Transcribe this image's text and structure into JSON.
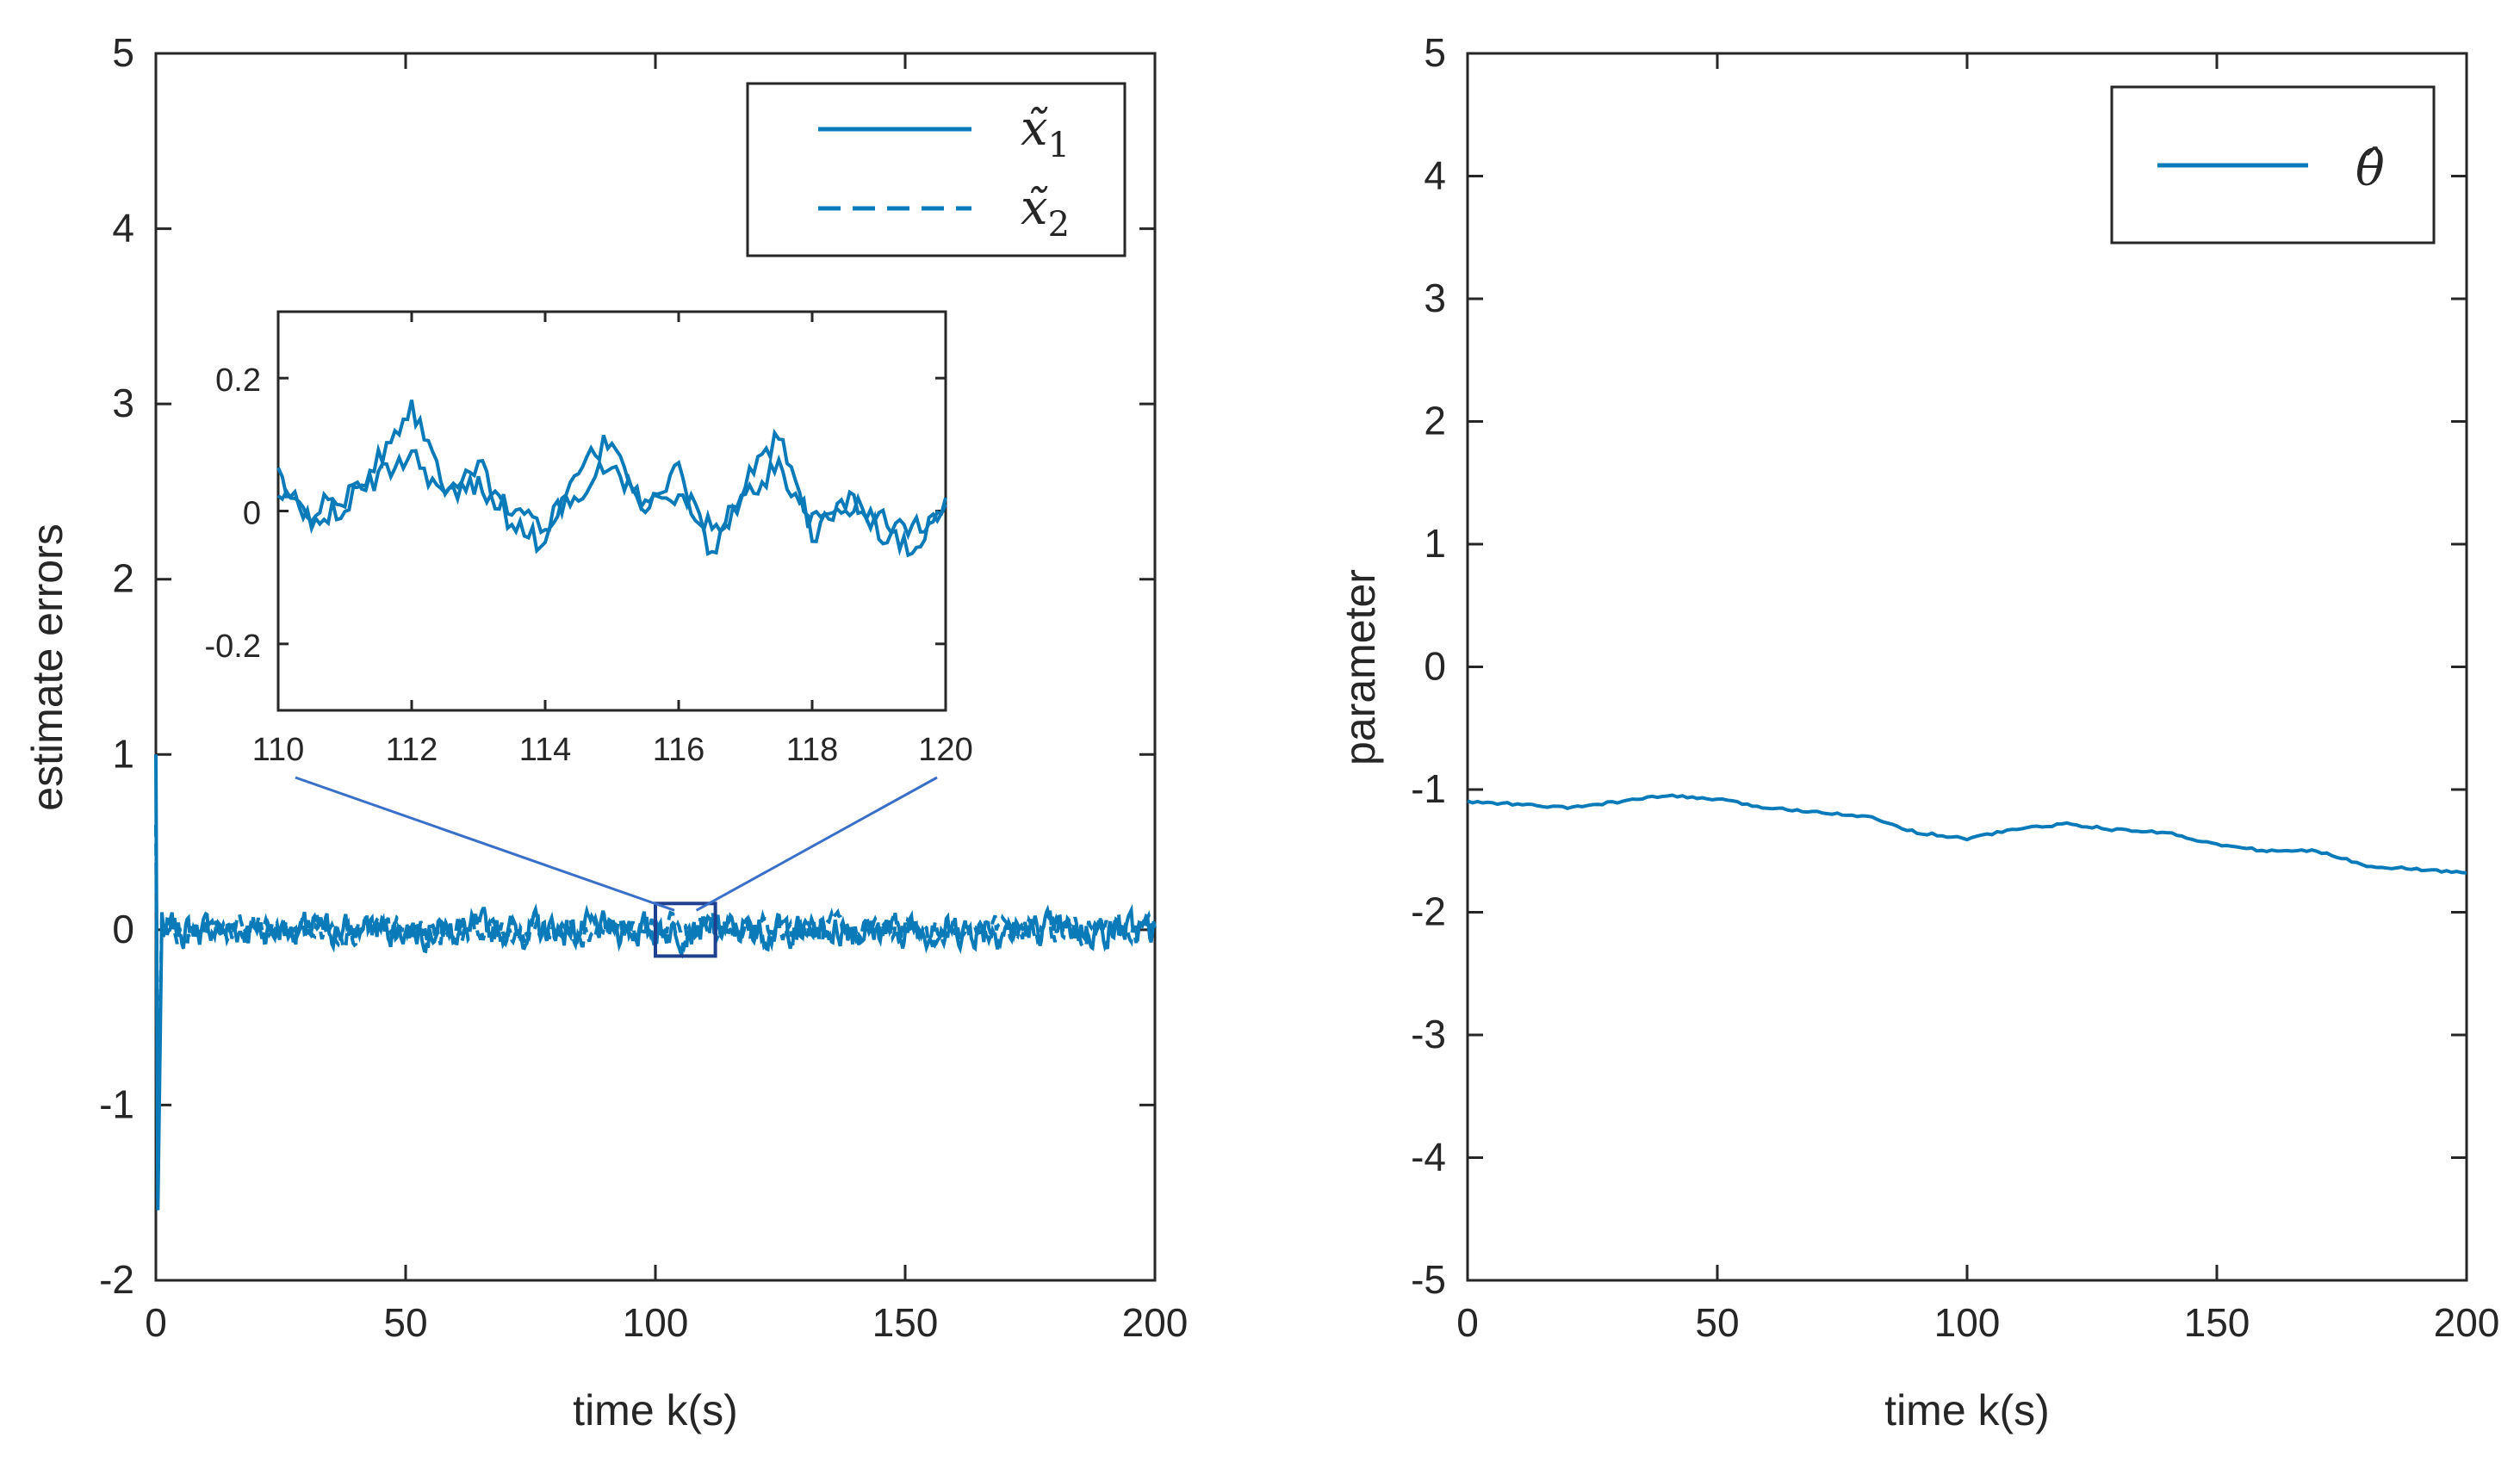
{
  "colors": {
    "line": "#0a7ab8",
    "axis": "#262626",
    "zoom": "#3a6fc8",
    "box": "#1f3f8f"
  },
  "chart_data": [
    {
      "type": "line",
      "xlabel": "time k(s)",
      "ylabel": "estimate errors",
      "xlim": [
        0,
        200
      ],
      "ylim": [
        -2,
        5
      ],
      "xticks": [
        0,
        50,
        100,
        150,
        200
      ],
      "yticks": [
        -2,
        -1,
        0,
        1,
        2,
        3,
        4,
        5
      ],
      "legend_position": "top-right",
      "series": [
        {
          "name": "x̃",
          "sub": "1",
          "style": "solid",
          "amplitude": 0.06,
          "initial": [
            1.0,
            -1.6
          ]
        },
        {
          "name": "x̃",
          "sub": "2",
          "style": "dashed",
          "amplitude": 0.05,
          "initial": [
            0.6,
            -1.2
          ]
        }
      ],
      "inset": {
        "xlim": [
          110,
          120
        ],
        "ylim": [
          -0.3,
          0.3
        ],
        "xticks": [
          110,
          112,
          114,
          116,
          118,
          120
        ],
        "yticks": [
          -0.2,
          0,
          0.2
        ],
        "zoom_box": {
          "x": [
            100,
            112
          ],
          "y": [
            -0.15,
            0.15
          ]
        },
        "series": [
          {
            "name": "x̃1",
            "x": [
              110,
              110.5,
              111,
              111.5,
              112,
              112.5,
              113,
              113.5,
              114,
              114.5,
              115,
              115.5,
              116,
              116.5,
              117,
              117.5,
              118,
              118.5,
              119,
              119.5,
              120
            ],
            "y": [
              0.05,
              -0.02,
              0.01,
              0.08,
              0.16,
              0.04,
              0.07,
              -0.02,
              -0.05,
              0.06,
              0.11,
              0.0,
              0.06,
              -0.07,
              0.04,
              0.11,
              -0.04,
              0.02,
              -0.03,
              -0.06,
              0.02
            ]
          },
          {
            "name": "x̃2",
            "x": [
              110,
              110.5,
              111,
              111.5,
              112,
              112.5,
              113,
              113.5,
              114,
              114.5,
              115,
              115.5,
              116,
              116.5,
              117,
              117.5,
              118,
              118.5,
              119,
              119.5,
              120
            ],
            "y": [
              0.02,
              0.0,
              0.02,
              0.05,
              0.09,
              0.02,
              0.04,
              0.0,
              -0.02,
              0.03,
              0.07,
              0.01,
              0.03,
              -0.03,
              0.02,
              0.07,
              -0.02,
              0.01,
              -0.01,
              -0.03,
              0.01
            ]
          }
        ]
      }
    },
    {
      "type": "line",
      "xlabel": "time k(s)",
      "ylabel": "parameter",
      "xlim": [
        0,
        200
      ],
      "ylim": [
        -5,
        5
      ],
      "xticks": [
        0,
        50,
        100,
        150,
        200
      ],
      "yticks": [
        -5,
        -4,
        -3,
        -2,
        -1,
        0,
        1,
        2,
        3,
        4,
        5
      ],
      "legend_position": "top-right",
      "series": [
        {
          "name": "θ̂",
          "x": [
            0,
            10,
            20,
            30,
            40,
            50,
            60,
            70,
            80,
            90,
            100,
            110,
            120,
            130,
            140,
            150,
            160,
            170,
            180,
            190,
            200
          ],
          "y": [
            -1.1,
            -1.12,
            -1.15,
            -1.1,
            -1.05,
            -1.08,
            -1.15,
            -1.18,
            -1.22,
            -1.35,
            -1.4,
            -1.32,
            -1.28,
            -1.33,
            -1.35,
            -1.45,
            -1.5,
            -1.5,
            -1.62,
            -1.65,
            -1.68
          ]
        }
      ]
    }
  ]
}
